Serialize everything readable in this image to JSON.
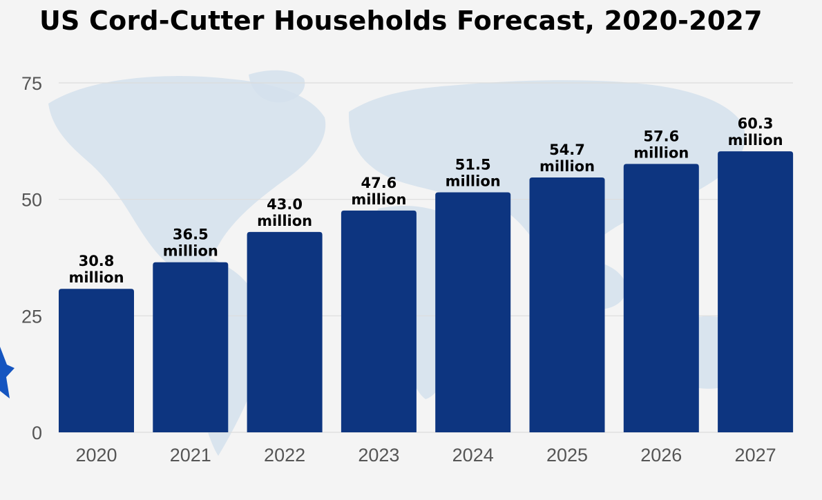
{
  "chart_data": {
    "type": "bar",
    "title": "US Cord-Cutter Households Forecast, 2020-2027",
    "categories": [
      "2020",
      "2021",
      "2022",
      "2023",
      "2024",
      "2025",
      "2026",
      "2027"
    ],
    "values": [
      30.8,
      36.5,
      43.0,
      47.6,
      51.5,
      54.7,
      57.6,
      60.3
    ],
    "value_labels": [
      "30.8",
      "36.5",
      "43.0",
      "47.6",
      "51.5",
      "54.7",
      "57.6",
      "60.3"
    ],
    "value_unit_label": "million",
    "yticks": [
      "0",
      "25",
      "50",
      "75"
    ],
    "ylim": [
      0,
      75
    ],
    "xlabel": "",
    "ylabel": "",
    "grid": true,
    "bar_color": "#0d3580",
    "map_color": "#d4e0ec",
    "grid_color": "#dcdcdc"
  }
}
